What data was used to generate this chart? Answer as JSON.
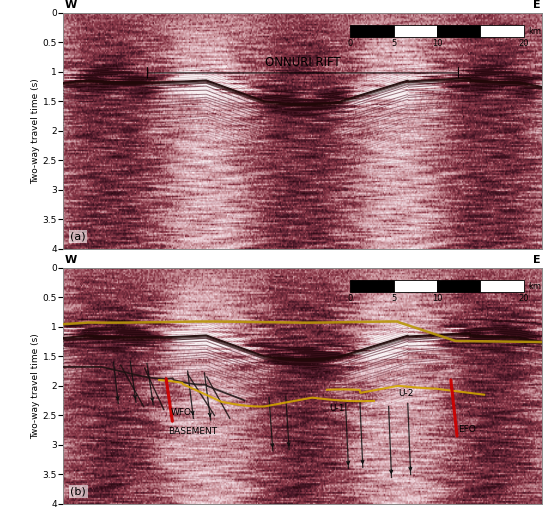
{
  "fig_width": 5.5,
  "fig_height": 5.09,
  "dpi": 100,
  "bg_color": "#ffffff",
  "panel_a_label": "(a)",
  "panel_b_label": "(b)",
  "ylabel": "Two-way travel time (s)",
  "y_min": 0.0,
  "y_max": 4.0,
  "y_ticks": [
    0.0,
    0.5,
    1.0,
    1.5,
    2.0,
    2.5,
    3.0,
    3.5,
    4.0
  ],
  "west_label": "W",
  "east_label": "E",
  "onnuri_rift_label": "ONNURI RIFT",
  "scalebar_unit": "km",
  "basement_label": "BASEMENT",
  "wfo_label": "WFO",
  "efo_label": "EFO",
  "u1_label": "U-1",
  "u2_label": "U-2",
  "yellow_line_color": "#d4a800",
  "red_fault_color": "#cc0000",
  "seismic_bg_color": "#e8d0d8",
  "seismic_reflector_color": "#7a3040",
  "seismic_strong_color": "#3a1020"
}
